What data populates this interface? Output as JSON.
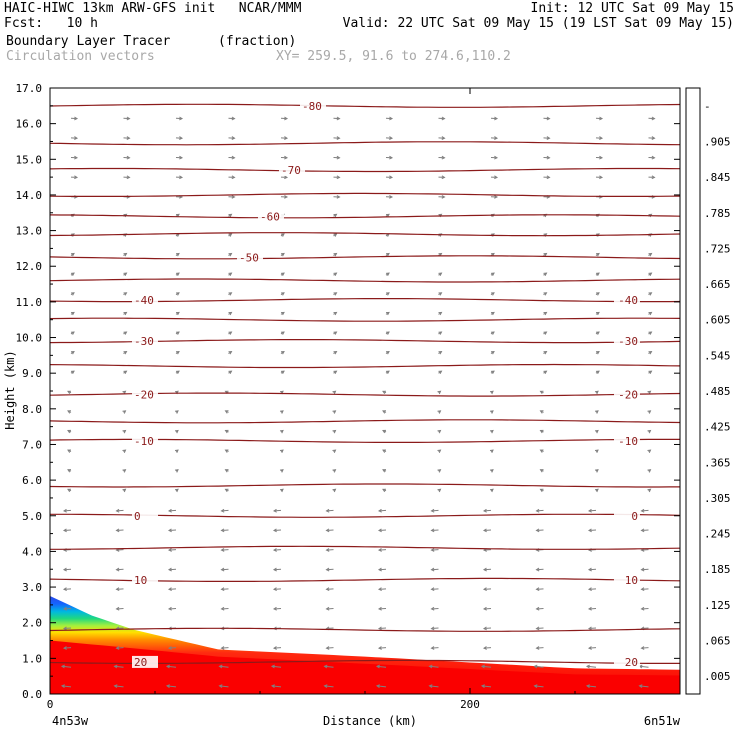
{
  "header": {
    "line1_left": "HAIC-HIWC 13km ARW-GFS init   NCAR/MMM",
    "line1_right": "Init: 12 UTC Sat 09 May 15",
    "line2_left": "Fcst:   10 h",
    "line2_right": "Valid: 22 UTC Sat 09 May 15 (19 LST Sat 09 May 15)",
    "line3_field": "Boundary Layer Tracer",
    "line3_units": "(fraction)",
    "line4_field": "Circulation vectors",
    "line4_xy": "XY= 259.5, 91.6 to 274.6,110.2"
  },
  "chart_data": {
    "type": "heatmap",
    "xlabel": "Distance (km)",
    "ylabel": "Height (km)",
    "xlim": [
      0,
      300
    ],
    "ylim": [
      0,
      17
    ],
    "x_ticks": [
      "0",
      "200"
    ],
    "x_tick_values": [
      0,
      200
    ],
    "y_ticks": [
      "0.0",
      "1.0",
      "2.0",
      "3.0",
      "4.0",
      "5.0",
      "6.0",
      "7.0",
      "8.0",
      "9.0",
      "10.0",
      "11.0",
      "12.0",
      "13.0",
      "14.0",
      "15.0",
      "16.0",
      "17.0"
    ],
    "y_tick_values": [
      0,
      1,
      2,
      3,
      4,
      5,
      6,
      7,
      8,
      9,
      10,
      11,
      12,
      13,
      14,
      15,
      16,
      17
    ],
    "left_endpoint": "4n53w",
    "right_endpoint": "6n51w",
    "colorbar": {
      "labels": [
        "-",
        ".905",
        ".845",
        ".785",
        ".725",
        ".665",
        ".605",
        ".545",
        ".485",
        ".425",
        ".365",
        ".305",
        ".245",
        ".185",
        ".125",
        ".065",
        ".005"
      ],
      "colors": [
        "#fa0000",
        "#ff1e1e",
        "#ff4a14",
        "#ff7a00",
        "#ff9a00",
        "#ffbc00",
        "#ffdc00",
        "#fff000",
        "#e0ff20",
        "#a8f030",
        "#60e040",
        "#20d870",
        "#00c8b0",
        "#00b4e8",
        "#0a80ff",
        "#1e46f0",
        "#ffffff"
      ]
    },
    "tracer_fill": {
      "description": "boundary layer tracer fraction",
      "top_km_by_distance": [
        [
          0,
          2.75
        ],
        [
          20,
          2.2
        ],
        [
          40,
          1.8
        ],
        [
          80,
          1.25
        ],
        [
          150,
          1.05
        ],
        [
          250,
          0.72
        ],
        [
          300,
          0.68
        ]
      ],
      "core_top_km_by_distance": [
        [
          0,
          1.5
        ],
        [
          40,
          1.28
        ],
        [
          80,
          1.05
        ],
        [
          150,
          0.85
        ],
        [
          250,
          0.55
        ],
        [
          300,
          0.52
        ]
      ]
    },
    "temperature_contours": [
      {
        "value": -80,
        "label": "-80",
        "height_km": 16.5
      },
      {
        "value": -70,
        "label": "-70",
        "height_km": 14.7
      },
      {
        "value": -60,
        "label": "-60",
        "height_km": 13.4
      },
      {
        "value": -50,
        "label": "-50",
        "height_km": 12.25
      },
      {
        "value": -40,
        "label": "-40",
        "height_km": 11.05
      },
      {
        "value": -30,
        "label": "-30",
        "height_km": 9.9
      },
      {
        "value": -20,
        "label": "-20",
        "height_km": 8.4
      },
      {
        "value": -10,
        "label": "-10",
        "height_km": 7.1
      },
      {
        "value": 0,
        "label": "0",
        "height_km": 5.0
      },
      {
        "value": 10,
        "label": "10",
        "height_km": 3.2
      },
      {
        "value": 20,
        "label": "20",
        "height_km": 0.9
      }
    ],
    "other_contour_heights_km": [
      15.45,
      14.0,
      12.9,
      11.6,
      10.5,
      9.2,
      7.65,
      5.85,
      4.1,
      1.8
    ],
    "colors": {
      "contour": "#8b1a1a",
      "vector": "#808080"
    }
  }
}
